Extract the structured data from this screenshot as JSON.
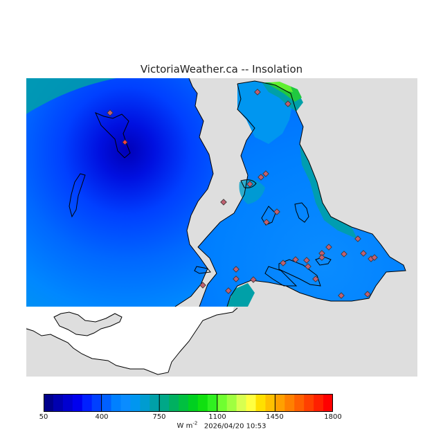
{
  "title": "VictoriaWeather.ca -- Insolation",
  "colorbar": {
    "ticks": [
      "50",
      "400",
      "750",
      "1100",
      "1450",
      "1800"
    ],
    "unit_base": "W m",
    "unit_exponent": "-2",
    "colors": [
      "#00008b",
      "#0000b0",
      "#0000d0",
      "#0000ee",
      "#0020ff",
      "#0040ff",
      "#0060ff",
      "#0080ff",
      "#0a8cff",
      "#0096f0",
      "#009cd0",
      "#00a0a8",
      "#00a888",
      "#00b060",
      "#00c040",
      "#00d020",
      "#10e010",
      "#30f020",
      "#70ff30",
      "#a0ff40",
      "#d8ff50",
      "#ffff40",
      "#ffe000",
      "#ffc000",
      "#ffa000",
      "#ff8000",
      "#ff6000",
      "#ff4000",
      "#ff2000",
      "#ff0000"
    ]
  },
  "timestamp": "2026/04/20 10:53",
  "map": {
    "land_color": "#dedede",
    "unmapped_color": "#ffffff",
    "station_color": "#c06070",
    "highlight_station_color": "#ff4040"
  }
}
